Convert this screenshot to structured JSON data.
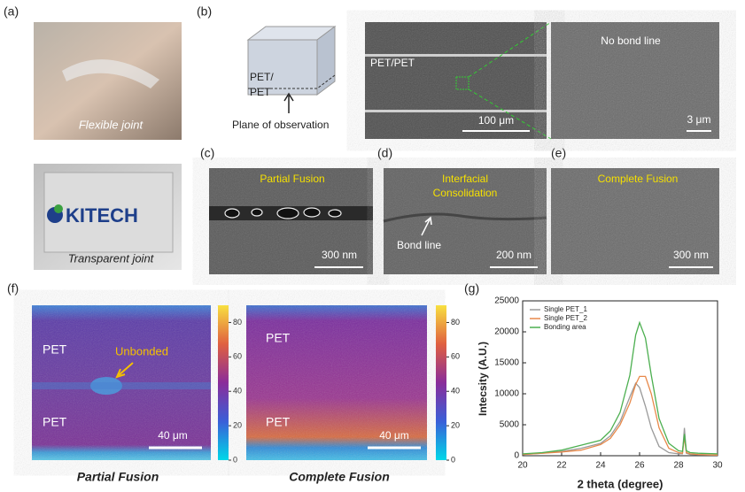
{
  "panels": {
    "a": "(a)",
    "b": "(b)",
    "c": "(c)",
    "d": "(d)",
    "e": "(e)",
    "f": "(f)",
    "g": "(g)"
  },
  "photos": {
    "flexible": "Flexible joint",
    "transparent": "Transparent joint",
    "logo": "KITECH"
  },
  "schematic": {
    "top": "PET/",
    "bottom": "PET",
    "plane": "Plane of observation"
  },
  "sem_b": {
    "label": "PET/PET",
    "scale": "100 μm",
    "zoom_label": "No bond line",
    "zoom_scale": "3 μm"
  },
  "sem_c": {
    "title": "Partial Fusion",
    "scale": "300 nm"
  },
  "sem_d": {
    "title_lines": [
      "Interfacial",
      "Consolidation"
    ],
    "arrow_label": "Bond line",
    "scale": "200 nm"
  },
  "sem_e": {
    "title": "Complete Fusion",
    "scale": "300 nm"
  },
  "map_partial": {
    "top": "PET",
    "arrow_label": "Unbonded",
    "bottom": "PET",
    "scale": "40 μm",
    "caption": "Partial Fusion",
    "colorbar_lim": [
      0,
      90
    ],
    "colorbar_ticks": [
      0,
      20,
      40,
      60,
      80
    ]
  },
  "map_complete": {
    "top": "PET",
    "bottom": "PET",
    "scale": "40 μm",
    "caption": "Complete Fusion",
    "colorbar_lim": [
      0,
      90
    ],
    "colorbar_ticks": [
      0,
      20,
      40,
      60,
      80
    ]
  },
  "chart_data": {
    "type": "line",
    "x_label": "2 theta (degree)",
    "y_label": "Intecsity (A.U.)",
    "x": [
      20,
      21,
      22,
      23,
      24,
      24.5,
      25,
      25.5,
      25.8,
      26,
      26.3,
      26.6,
      27,
      27.5,
      28,
      28.2,
      28.3,
      28.4,
      28.6,
      29,
      30
    ],
    "series": [
      {
        "name": "Single PET_1",
        "color": "#9a9a9a",
        "values": [
          200,
          400,
          700,
          1200,
          2000,
          3200,
          5500,
          9500,
          11700,
          11000,
          8000,
          4500,
          1500,
          500,
          300,
          300,
          4500,
          400,
          200,
          150,
          100
        ]
      },
      {
        "name": "Single PET_2",
        "color": "#e8894a",
        "values": [
          200,
          400,
          600,
          900,
          1800,
          2800,
          5000,
          8500,
          11500,
          12800,
          12800,
          10000,
          4500,
          1200,
          500,
          400,
          3000,
          500,
          300,
          200,
          100
        ]
      },
      {
        "name": "Bonding area",
        "color": "#4caf50",
        "values": [
          300,
          500,
          900,
          1700,
          2500,
          4000,
          7000,
          13000,
          19500,
          21500,
          19000,
          13000,
          6000,
          2000,
          800,
          700,
          3500,
          800,
          500,
          400,
          300
        ]
      }
    ],
    "xlim": [
      20,
      30
    ],
    "xticks": [
      20,
      22,
      24,
      26,
      28,
      30
    ],
    "ylim": [
      0,
      25000
    ],
    "yticks": [
      0,
      5000,
      10000,
      15000,
      20000,
      25000
    ],
    "legend": "upper left"
  }
}
